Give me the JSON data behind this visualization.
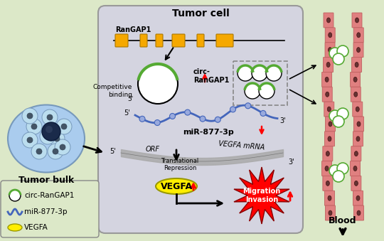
{
  "bg_color": "#dce8c8",
  "cell_bg": "#d4d4e0",
  "cell_border": "#999999",
  "title": "Tumor cell",
  "tumor_bulk_label": "Tumor bulk",
  "blood_label": "Blood",
  "rangap1_label": "RanGAP1",
  "circ_label": "circ-\nRanGAP1",
  "mir_label": "miR-877-3p",
  "orf_label": "ORF",
  "vegfa_mrna_label": "VEGFA mRNA",
  "trans_rep_label": "Translational\nRepression",
  "vegfa_label": "VEGFA",
  "mig_inv_label": "Migration\nInvasion",
  "comp_bind_label": "Competitive\nbinding",
  "legend_circ": "circ-RanGAP1",
  "legend_mir": "miR-877-3p",
  "legend_vegfa": "VEGFA",
  "gold_color": "#F5A800",
  "red_color": "#CC0000",
  "blue_color": "#4466BB",
  "green_color": "#55AA33",
  "yellow_color": "#FFEE00",
  "vessel_color": "#E08080",
  "vessel_border": "#C06060"
}
